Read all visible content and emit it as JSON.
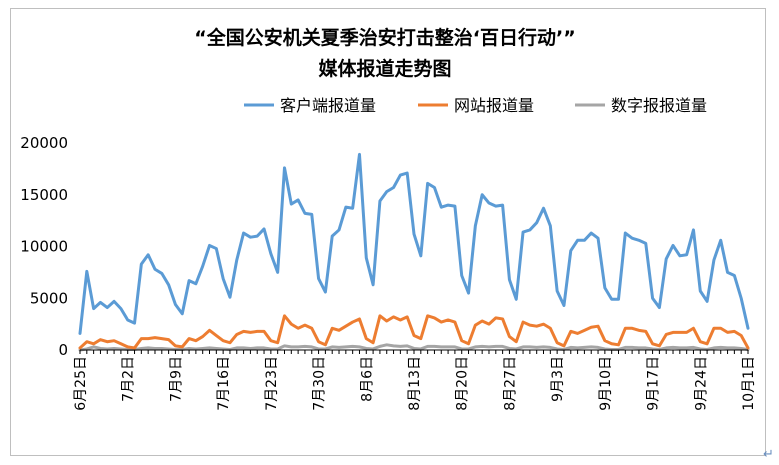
{
  "chart_data": {
    "type": "line",
    "title": "“全国公安机关夏季治安打击整治‘百日行动’”",
    "subtitle": "媒体报道走势图",
    "xlabel": "",
    "ylabel": "",
    "ylim": [
      0,
      20000
    ],
    "yticks": [
      "20000",
      "15000",
      "10000",
      "5000",
      "0"
    ],
    "ytick_values": [
      20000,
      15000,
      10000,
      5000,
      0
    ],
    "grid": false,
    "legend_position": "top-right",
    "xtick_labels": [
      "6月25日",
      "7月2日",
      "7月9日",
      "7月16日",
      "7月23日",
      "7月30日",
      "8月6日",
      "8月13日",
      "8月20日",
      "8月27日",
      "9月3日",
      "9月10日",
      "9月17日",
      "9月24日",
      "10月1日"
    ],
    "x": [
      "6/25",
      "6/26",
      "6/27",
      "6/28",
      "6/29",
      "6/30",
      "7/1",
      "7/2",
      "7/3",
      "7/4",
      "7/5",
      "7/6",
      "7/7",
      "7/8",
      "7/9",
      "7/10",
      "7/11",
      "7/12",
      "7/13",
      "7/14",
      "7/15",
      "7/16",
      "7/17",
      "7/18",
      "7/19",
      "7/20",
      "7/21",
      "7/22",
      "7/23",
      "7/24",
      "7/25",
      "7/26",
      "7/27",
      "7/28",
      "7/29",
      "7/30",
      "7/31",
      "8/1",
      "8/2",
      "8/3",
      "8/4",
      "8/5",
      "8/6",
      "8/7",
      "8/8",
      "8/9",
      "8/10",
      "8/11",
      "8/12",
      "8/13",
      "8/14",
      "8/15",
      "8/16",
      "8/17",
      "8/18",
      "8/19",
      "8/20",
      "8/21",
      "8/22",
      "8/23",
      "8/24",
      "8/25",
      "8/26",
      "8/27",
      "8/28",
      "8/29",
      "8/30",
      "8/31",
      "9/1",
      "9/2",
      "9/3",
      "9/4",
      "9/5",
      "9/6",
      "9/7",
      "9/8",
      "9/9",
      "9/10",
      "9/11",
      "9/12",
      "9/13",
      "9/14",
      "9/15",
      "9/16",
      "9/17",
      "9/18",
      "9/19",
      "9/20",
      "9/21",
      "9/22",
      "9/23",
      "9/24",
      "9/25",
      "9/26",
      "9/27",
      "9/28",
      "9/29",
      "9/30",
      "10/1"
    ],
    "series": [
      {
        "name": "客户端报道量",
        "color": "#5b9bd5",
        "values": [
          1600,
          7600,
          4000,
          4600,
          4100,
          4700,
          4000,
          2900,
          2600,
          8300,
          9200,
          7800,
          7400,
          6300,
          4400,
          3500,
          6700,
          6400,
          8100,
          10100,
          9800,
          6900,
          5100,
          8700,
          11300,
          10900,
          11000,
          11700,
          9300,
          7500,
          17600,
          14100,
          14500,
          13200,
          13100,
          6900,
          5600,
          11000,
          11600,
          13800,
          13700,
          18900,
          8900,
          6300,
          14400,
          15300,
          15700,
          16900,
          17100,
          11200,
          9100,
          16100,
          15700,
          13800,
          14000,
          13900,
          7200,
          5500,
          12000,
          15000,
          14200,
          13900,
          14000,
          6800,
          4900,
          11400,
          11600,
          12300,
          13700,
          12000,
          5700,
          4300,
          9600,
          10600,
          10600,
          11300,
          10800,
          6000,
          4900,
          4900,
          11300,
          10800,
          10600,
          10300,
          5000,
          4100,
          8800,
          10100,
          9100,
          9200,
          11600,
          5700,
          4700,
          8700,
          10600,
          7500,
          7200,
          5000,
          2100
        ]
      },
      {
        "name": "网站报道量",
        "color": "#ed7d31",
        "values": [
          200,
          800,
          600,
          1000,
          800,
          900,
          600,
          300,
          200,
          1100,
          1100,
          1200,
          1100,
          1000,
          400,
          300,
          1100,
          900,
          1300,
          1900,
          1400,
          900,
          700,
          1500,
          1800,
          1700,
          1800,
          1800,
          900,
          700,
          3300,
          2500,
          2100,
          2400,
          2100,
          800,
          500,
          2100,
          1900,
          2300,
          2700,
          3000,
          1100,
          700,
          3300,
          2800,
          3200,
          2900,
          3200,
          1400,
          1100,
          3300,
          3100,
          2700,
          2900,
          2700,
          900,
          600,
          2400,
          2800,
          2500,
          3100,
          3000,
          1300,
          800,
          2700,
          2400,
          2300,
          2500,
          2100,
          700,
          400,
          1800,
          1600,
          1900,
          2200,
          2300,
          900,
          600,
          500,
          2100,
          2100,
          1900,
          1800,
          600,
          400,
          1500,
          1700,
          1700,
          1700,
          2100,
          800,
          600,
          2100,
          2100,
          1700,
          1800,
          1400,
          200
        ]
      },
      {
        "name": "数字报报道量",
        "color": "#a5a5a5",
        "values": [
          0,
          100,
          300,
          150,
          100,
          150,
          100,
          50,
          50,
          150,
          200,
          150,
          150,
          100,
          50,
          50,
          150,
          100,
          150,
          200,
          150,
          100,
          50,
          200,
          200,
          150,
          200,
          200,
          100,
          100,
          400,
          300,
          300,
          350,
          300,
          100,
          100,
          300,
          250,
          300,
          350,
          300,
          150,
          100,
          350,
          500,
          400,
          350,
          400,
          150,
          100,
          350,
          350,
          300,
          300,
          300,
          100,
          100,
          300,
          350,
          300,
          350,
          350,
          150,
          100,
          300,
          300,
          250,
          300,
          250,
          100,
          50,
          250,
          200,
          250,
          300,
          250,
          100,
          50,
          50,
          250,
          250,
          200,
          200,
          100,
          50,
          200,
          250,
          200,
          200,
          250,
          100,
          50,
          200,
          250,
          200,
          200,
          150,
          50
        ]
      }
    ]
  },
  "page": {
    "return_mark": "↵"
  }
}
